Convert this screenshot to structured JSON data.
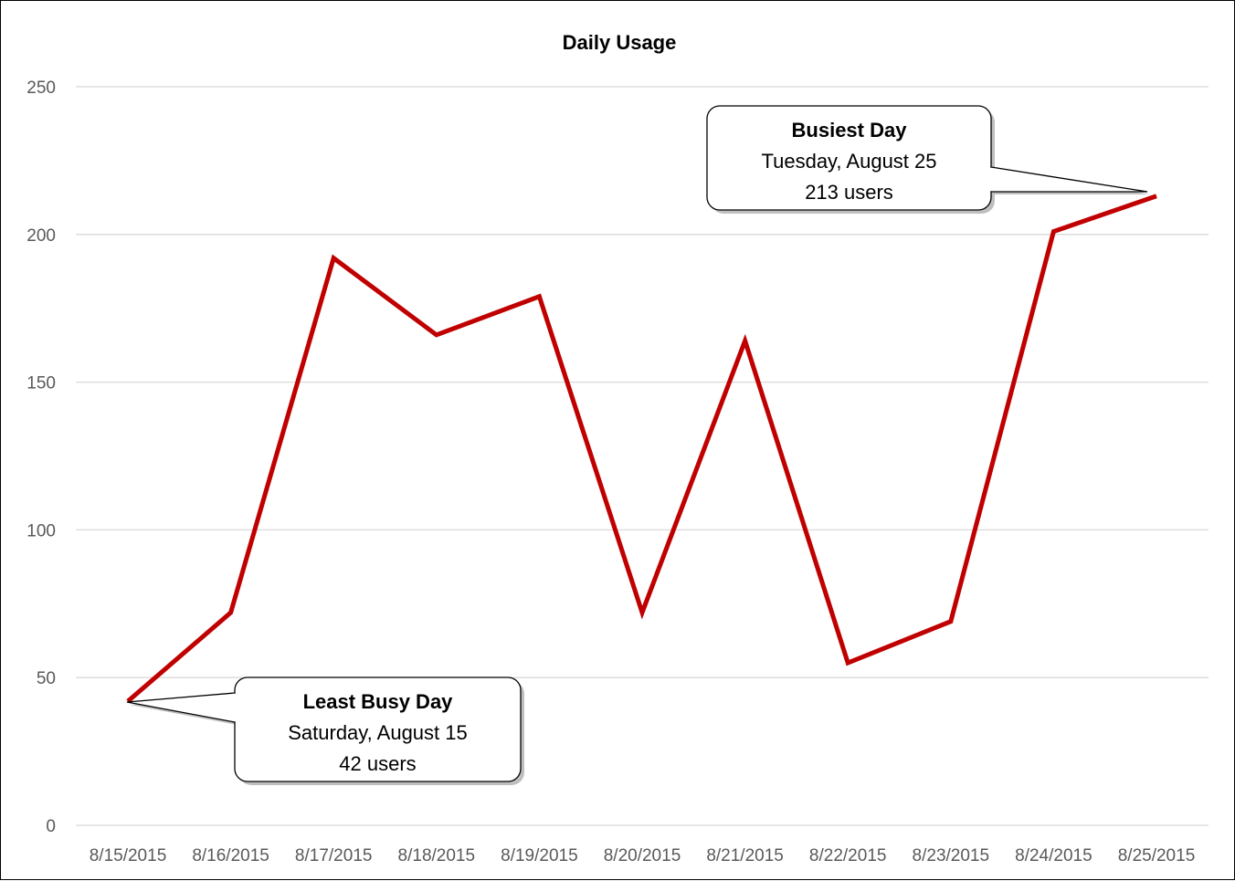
{
  "chart_data": {
    "type": "line",
    "title": "Daily Usage",
    "xlabel": "",
    "ylabel": "",
    "x": [
      "8/15/2015",
      "8/16/2015",
      "8/17/2015",
      "8/18/2015",
      "8/19/2015",
      "8/20/2015",
      "8/21/2015",
      "8/22/2015",
      "8/23/2015",
      "8/24/2015",
      "8/25/2015"
    ],
    "series": [
      {
        "values": [
          42,
          72,
          192,
          166,
          179,
          72,
          164,
          55,
          69,
          201,
          213
        ],
        "color": "#c00000"
      }
    ],
    "ylim": [
      0,
      250
    ],
    "yticks": [
      0,
      50,
      100,
      150,
      200,
      250
    ],
    "grid": true,
    "legend": "none",
    "annotations": [
      {
        "title": "Busiest Day",
        "line1": "Tuesday, August 25",
        "line2": "213 users",
        "point_index": 10
      },
      {
        "title": "Least Busy Day",
        "line1": "Saturday, August 15",
        "line2": "42 users",
        "point_index": 0
      }
    ]
  },
  "colors": {
    "grid": "#d9d9d9",
    "line": "#c00000",
    "tick_text": "#595959"
  }
}
